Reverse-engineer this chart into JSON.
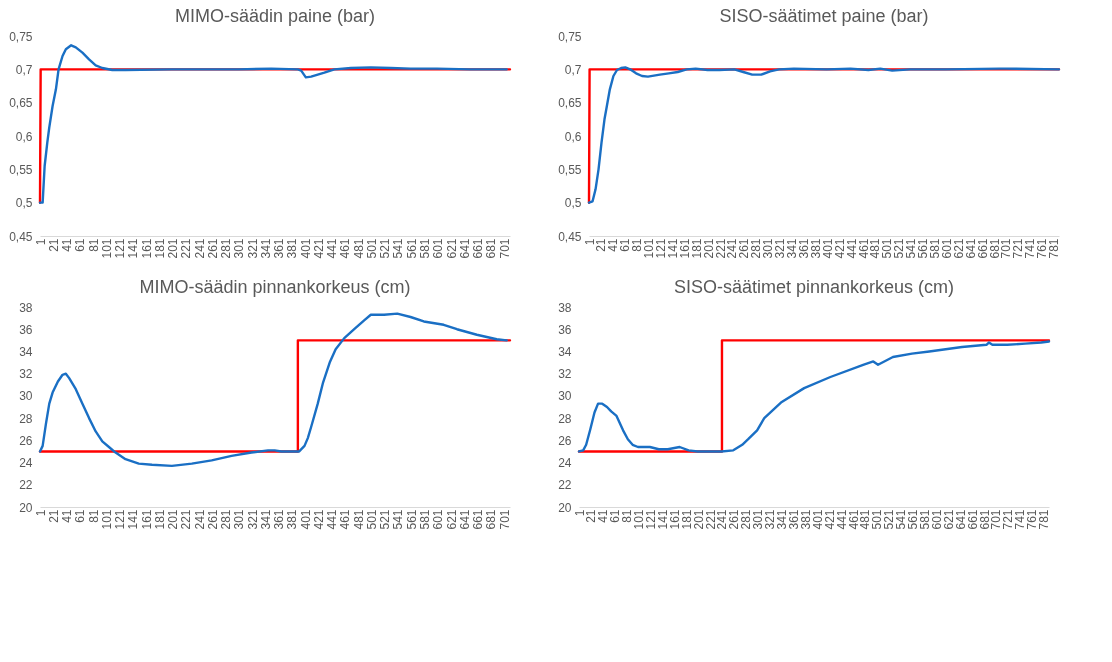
{
  "chart_data": [
    {
      "type": "line",
      "title": "MIMO-säädin paine (bar)",
      "xlim": [
        1,
        710
      ],
      "xticks": [
        1,
        21,
        41,
        61,
        81,
        101,
        121,
        141,
        161,
        181,
        201,
        221,
        241,
        261,
        281,
        301,
        321,
        341,
        361,
        381,
        401,
        421,
        441,
        461,
        481,
        501,
        521,
        541,
        561,
        581,
        601,
        621,
        641,
        661,
        681,
        701
      ],
      "ylim": [
        0.45,
        0.75
      ],
      "yticks": [
        {
          "value": 0.45,
          "label": "0,45"
        },
        {
          "value": 0.5,
          "label": "0,5"
        },
        {
          "value": 0.55,
          "label": "0,55"
        },
        {
          "value": 0.6,
          "label": "0,6"
        },
        {
          "value": 0.65,
          "label": "0,65"
        },
        {
          "value": 0.7,
          "label": "0,7"
        },
        {
          "value": 0.75,
          "label": "0,75"
        }
      ],
      "series": [
        {
          "color": "#ff0000",
          "x": [
            1,
            2,
            710
          ],
          "values": [
            0.5,
            0.7,
            0.7
          ]
        },
        {
          "color": "#1a6fc4",
          "x": [
            1,
            5,
            8,
            12,
            15,
            20,
            25,
            29,
            35,
            40,
            48,
            55,
            65,
            75,
            85,
            95,
            110,
            130,
            200,
            300,
            350,
            390,
            395,
            402,
            410,
            420,
            430,
            445,
            470,
            500,
            530,
            560,
            600,
            650,
            705
          ],
          "values": [
            0.5,
            0.5,
            0.555,
            0.59,
            0.613,
            0.645,
            0.67,
            0.7,
            0.72,
            0.73,
            0.736,
            0.733,
            0.725,
            0.715,
            0.706,
            0.702,
            0.699,
            0.699,
            0.7,
            0.7,
            0.701,
            0.7,
            0.698,
            0.688,
            0.689,
            0.692,
            0.695,
            0.7,
            0.702,
            0.703,
            0.702,
            0.701,
            0.701,
            0.7,
            0.7
          ]
        }
      ]
    },
    {
      "type": "line",
      "title": "SISO-säätimet paine (bar)",
      "xlim": [
        1,
        790
      ],
      "xticks": [
        1,
        21,
        41,
        61,
        81,
        101,
        121,
        141,
        161,
        181,
        201,
        221,
        241,
        261,
        281,
        301,
        321,
        341,
        361,
        381,
        401,
        421,
        441,
        461,
        481,
        501,
        521,
        541,
        561,
        581,
        601,
        621,
        641,
        661,
        681,
        701,
        721,
        741,
        761,
        781
      ],
      "ylim": [
        0.45,
        0.75
      ],
      "yticks": [
        {
          "value": 0.45,
          "label": "0,45"
        },
        {
          "value": 0.5,
          "label": "0,5"
        },
        {
          "value": 0.55,
          "label": "0,55"
        },
        {
          "value": 0.6,
          "label": "0,6"
        },
        {
          "value": 0.65,
          "label": "0,65"
        },
        {
          "value": 0.7,
          "label": "0,7"
        },
        {
          "value": 0.75,
          "label": "0,75"
        }
      ],
      "series": [
        {
          "color": "#ff0000",
          "x": [
            1,
            2,
            790
          ],
          "values": [
            0.5,
            0.7,
            0.7
          ]
        },
        {
          "color": "#1a6fc4",
          "x": [
            1,
            7,
            12,
            17,
            22,
            27,
            31,
            36,
            42,
            48,
            55,
            62,
            70,
            80,
            90,
            100,
            120,
            135,
            150,
            165,
            180,
            200,
            220,
            245,
            260,
            275,
            290,
            305,
            320,
            345,
            400,
            440,
            470,
            490,
            510,
            540,
            600,
            690,
            700,
            790
          ],
          "values": [
            0.5,
            0.502,
            0.52,
            0.55,
            0.59,
            0.625,
            0.645,
            0.67,
            0.69,
            0.699,
            0.702,
            0.703,
            0.7,
            0.694,
            0.69,
            0.689,
            0.692,
            0.694,
            0.696,
            0.7,
            0.701,
            0.699,
            0.699,
            0.7,
            0.696,
            0.692,
            0.692,
            0.697,
            0.7,
            0.701,
            0.7,
            0.701,
            0.699,
            0.701,
            0.698,
            0.7,
            0.7,
            0.701,
            0.701,
            0.7
          ]
        }
      ]
    },
    {
      "type": "line",
      "title": "MIMO-säädin pinnankorkeus (cm)",
      "xlim": [
        1,
        710
      ],
      "xticks": [
        1,
        21,
        41,
        61,
        81,
        101,
        121,
        141,
        161,
        181,
        201,
        221,
        241,
        261,
        281,
        301,
        321,
        341,
        361,
        381,
        401,
        421,
        441,
        461,
        481,
        501,
        521,
        541,
        561,
        581,
        601,
        621,
        641,
        661,
        681,
        701
      ],
      "ylim": [
        20,
        38
      ],
      "yticks": [
        20,
        22,
        24,
        26,
        28,
        30,
        32,
        34,
        36,
        38
      ],
      "series": [
        {
          "color": "#ff0000",
          "x": [
            1,
            390,
            390,
            710
          ],
          "values": [
            25,
            25,
            35,
            35
          ]
        },
        {
          "color": "#1a6fc4",
          "x": [
            1,
            5,
            10,
            15,
            20,
            28,
            35,
            40,
            45,
            55,
            65,
            75,
            85,
            95,
            105,
            115,
            130,
            150,
            170,
            200,
            230,
            260,
            290,
            320,
            345,
            355,
            365,
            392,
            400,
            405,
            410,
            420,
            428,
            438,
            447,
            460,
            475,
            490,
            500,
            520,
            540,
            560,
            580,
            610,
            630,
            660,
            690,
            705
          ],
          "values": [
            25,
            25.5,
            27.5,
            29.3,
            30.3,
            31.3,
            31.9,
            32,
            31.6,
            30.6,
            29.3,
            28,
            26.8,
            25.9,
            25.4,
            24.9,
            24.3,
            23.9,
            23.8,
            23.7,
            23.9,
            24.2,
            24.6,
            24.9,
            25.1,
            25.1,
            25,
            25,
            25.5,
            26.2,
            27.2,
            29.3,
            31.2,
            33,
            34.2,
            35.2,
            36,
            36.8,
            37.3,
            37.3,
            37.4,
            37.1,
            36.7,
            36.4,
            36,
            35.5,
            35.1,
            35
          ]
        }
      ]
    },
    {
      "type": "line",
      "title": "SISO-säätimet pinnankorkeus (cm)",
      "xlim": [
        1,
        790
      ],
      "xticks": [
        1,
        21,
        41,
        61,
        81,
        101,
        121,
        141,
        161,
        181,
        201,
        221,
        241,
        261,
        281,
        301,
        321,
        341,
        361,
        381,
        401,
        421,
        441,
        461,
        481,
        501,
        521,
        541,
        561,
        581,
        601,
        621,
        641,
        661,
        681,
        701,
        721,
        741,
        761,
        781
      ],
      "ylim": [
        20,
        38
      ],
      "yticks": [
        20,
        22,
        24,
        26,
        28,
        30,
        32,
        34,
        36,
        38
      ],
      "series": [
        {
          "color": "#ff0000",
          "x": [
            1,
            241,
            241,
            790
          ],
          "values": [
            25,
            25,
            35,
            35
          ]
        },
        {
          "color": "#1a6fc4",
          "x": [
            1,
            8,
            13,
            20,
            27,
            33,
            40,
            48,
            55,
            64,
            75,
            83,
            91,
            100,
            120,
            135,
            150,
            170,
            185,
            200,
            220,
            240,
            260,
            275,
            285,
            300,
            312,
            340,
            379,
            423,
            478,
            495,
            503,
            528,
            560,
            589,
            644,
            685,
            689,
            695,
            720,
            750,
            777,
            790
          ],
          "values": [
            25,
            25.1,
            25.6,
            27,
            28.5,
            29.3,
            29.3,
            29,
            28.6,
            28.2,
            26.9,
            26.1,
            25.6,
            25.4,
            25.4,
            25.2,
            25.2,
            25.4,
            25.1,
            25,
            25,
            25,
            25.1,
            25.6,
            26.1,
            26.9,
            28,
            29.4,
            30.7,
            31.7,
            32.8,
            33.1,
            32.8,
            33.5,
            33.8,
            34,
            34.4,
            34.6,
            34.8,
            34.6,
            34.6,
            34.7,
            34.8,
            34.9
          ]
        }
      ]
    }
  ]
}
